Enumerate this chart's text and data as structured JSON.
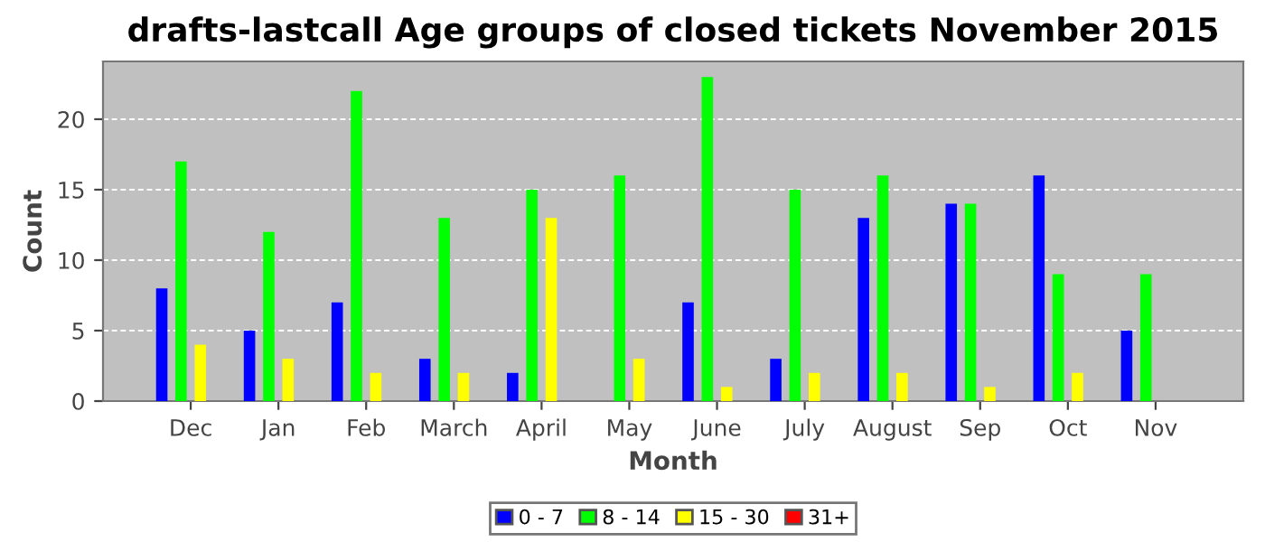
{
  "chart_data": {
    "type": "bar",
    "title": "drafts-lastcall Age groups of closed tickets November 2015",
    "xlabel": "Month",
    "ylabel": "Count",
    "categories": [
      "Dec",
      "Jan",
      "Feb",
      "March",
      "April",
      "May",
      "June",
      "July",
      "August",
      "Sep",
      "Oct",
      "Nov"
    ],
    "series": [
      {
        "name": "0 - 7",
        "color": "#0000ff",
        "values": [
          8,
          5,
          7,
          3,
          2,
          0,
          7,
          3,
          13,
          14,
          16,
          5
        ]
      },
      {
        "name": "8 - 14",
        "color": "#00ff00",
        "values": [
          17,
          12,
          22,
          13,
          15,
          16,
          23,
          15,
          16,
          14,
          9,
          9
        ]
      },
      {
        "name": "15 - 30",
        "color": "#ffff00",
        "values": [
          4,
          3,
          2,
          2,
          13,
          3,
          1,
          2,
          2,
          1,
          2,
          0
        ]
      },
      {
        "name": "31+",
        "color": "#ff0000",
        "values": [
          0,
          0,
          0,
          0,
          0,
          0,
          0,
          0,
          0,
          0,
          0,
          0
        ]
      }
    ],
    "ylim": [
      0,
      24.1
    ],
    "yticks": [
      0,
      5,
      10,
      15,
      20
    ],
    "grid": "y",
    "legend": "bottom"
  }
}
